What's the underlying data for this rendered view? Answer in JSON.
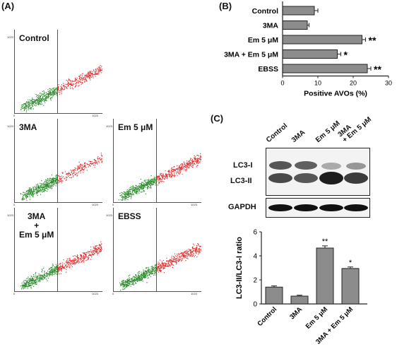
{
  "panel_labels": {
    "a": "(A)",
    "b": "(B)",
    "c": "(C)"
  },
  "flow_panels": [
    {
      "label_lines": [
        "Control"
      ],
      "tick_max": "1023",
      "tick_zero": "0",
      "tick_y": "1023"
    },
    {
      "label_lines": [
        "3MA"
      ],
      "tick_max": "1023",
      "tick_zero": "0",
      "tick_y": "1023"
    },
    {
      "label_lines": [
        "Em 5 μM"
      ],
      "tick_max": "1023",
      "tick_zero": "0",
      "tick_y": "1023"
    },
    {
      "label_lines": [
        "3MA",
        "+",
        "Em 5 μM"
      ],
      "tick_max": "1023",
      "tick_zero": "0",
      "tick_y": "1023"
    },
    {
      "label_lines": [
        "EBSS"
      ],
      "tick_max": "1023",
      "tick_zero": "0",
      "tick_y": "1023"
    }
  ],
  "colors": {
    "negative": "#2e8b2e",
    "positive": "#e03030",
    "bar": "#8c8c8c"
  },
  "blot": {
    "lanes": [
      "Control",
      "3MA",
      "Em 5 μM",
      "3MA\n+ Em 5 μM"
    ],
    "lc3i_label": "LC3-I",
    "lc3ii_label": "LC3-II",
    "gapdh_label": "GAPDH"
  },
  "chart_data": [
    {
      "type": "bar",
      "orientation": "horizontal",
      "categories": [
        "Control",
        "3MA",
        "Em 5 μM",
        "3MA + Em 5 μM",
        "EBSS"
      ],
      "values": [
        9,
        7,
        22.5,
        15.5,
        24
      ],
      "errors": [
        1,
        0.5,
        1,
        1,
        1
      ],
      "significance": [
        "",
        "",
        "**",
        "*",
        "**"
      ],
      "xlabel": "Positive AVOs (%)",
      "xlim": [
        0,
        30
      ],
      "xticks": [
        "0",
        "10",
        "20",
        "30"
      ]
    },
    {
      "type": "bar",
      "categories": [
        "Control",
        "3MA",
        "Em 5 μM",
        "3MA + Em 5 μM"
      ],
      "values": [
        1.4,
        0.65,
        4.65,
        2.95
      ],
      "errors": [
        0.1,
        0.08,
        0.18,
        0.12
      ],
      "significance": [
        "",
        "",
        "**",
        "*"
      ],
      "ylabel": "LC3-II/LC3-I ratio",
      "ylim": [
        0,
        6
      ],
      "yticks": [
        "0",
        "2",
        "4",
        "6"
      ]
    }
  ]
}
